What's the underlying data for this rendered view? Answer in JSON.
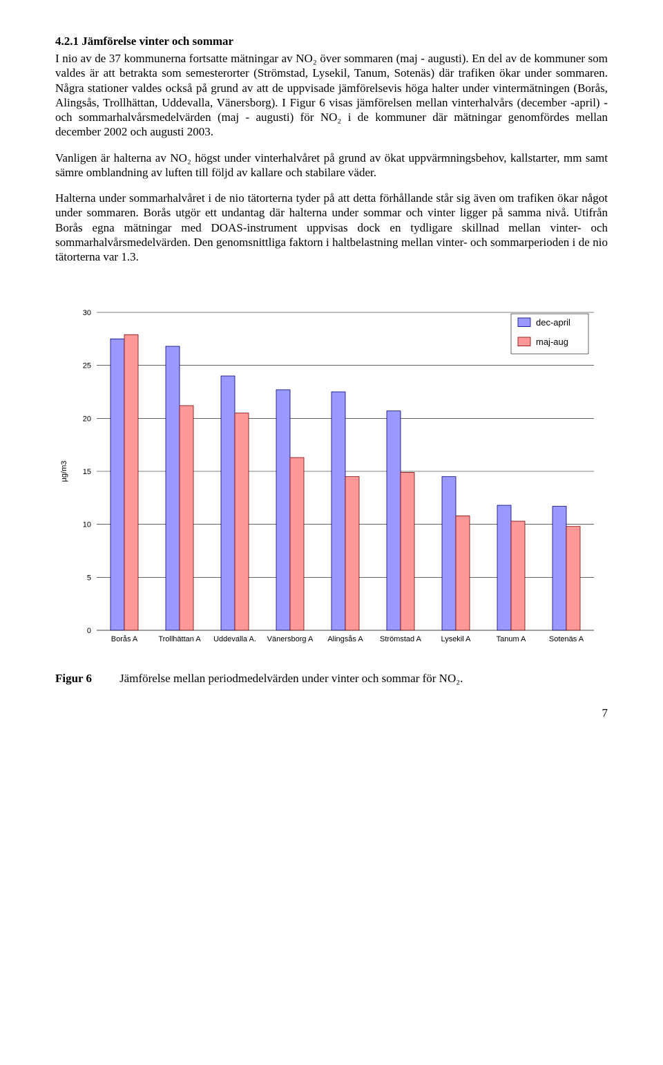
{
  "heading": "4.2.1   Jämförelse vinter och sommar",
  "paragraphs": {
    "p1": "I nio av de 37 kommunerna fortsatte mätningar av NO₂ över sommaren (maj - augusti). En del av de kommuner som valdes är att betrakta som semesterorter (Strömstad, Lysekil, Tanum, Sotenäs) där trafiken ökar under sommaren. Några stationer valdes också på grund av att de uppvisade jämförelsevis höga halter under vintermätningen (Borås, Alingsås, Trollhättan, Uddevalla, Vänersborg). I Figur 6 visas jämförelsen mellan vinterhalvårs (december -april) - och sommarhalvårsmedelvärden (maj - augusti) för NO₂ i de kommuner där mätningar genomfördes mellan december 2002 och augusti 2003.",
    "p2": "Vanligen är halterna av NO₂ högst under vinterhalvåret på grund av ökat uppvärmningsbehov, kallstarter, mm samt sämre omblandning av luften till följd av kallare och stabilare väder.",
    "p3": "Halterna under sommarhalvåret i de nio tätorterna tyder på att detta förhållande står sig även om trafiken ökar något under sommaren. Borås utgör ett undantag där halterna under sommar och vinter ligger på samma nivå. Utifrån Borås egna mätningar med DOAS-instrument uppvisas dock en tydligare skillnad mellan vinter- och sommarhalvårsmedelvärden. Den genomsnittliga faktorn i haltbelastning mellan vinter- och sommarperioden i de nio tätorterna var 1.3."
  },
  "chart": {
    "type": "bar",
    "categories": [
      "Borås A",
      "Trollhättan A",
      "Uddevalla A.",
      "Vänersborg A",
      "Alingsås A",
      "Strömstad A",
      "Lysekil A",
      "Tanum  A",
      "Sotenäs A"
    ],
    "series": [
      {
        "name": "dec-april",
        "color_fill": "#9999ff",
        "color_stroke": "#000080",
        "values": [
          27.5,
          26.8,
          24.0,
          22.7,
          22.5,
          20.7,
          14.5,
          11.8,
          11.7
        ]
      },
      {
        "name": "maj-aug",
        "color_fill": "#ff9999",
        "color_stroke": "#800000",
        "values": [
          27.9,
          21.2,
          20.5,
          16.3,
          14.5,
          14.9,
          10.8,
          10.3,
          9.8
        ]
      }
    ],
    "ylim": [
      0,
      30
    ],
    "ytick_step": 5,
    "ylabel": "µg/m3",
    "label_fontsize": 11,
    "tick_fontsize": 11,
    "grid_color": "#000000",
    "grid_width": 0.6,
    "background_color": "#ffffff",
    "bar_group_width": 0.5,
    "legend_font": 13,
    "legend_swatch": 18
  },
  "figure": {
    "label": "Figur 6",
    "caption": "Jämförelse mellan periodmedelvärden under vinter och sommar för NO₂."
  },
  "page_number": "7"
}
